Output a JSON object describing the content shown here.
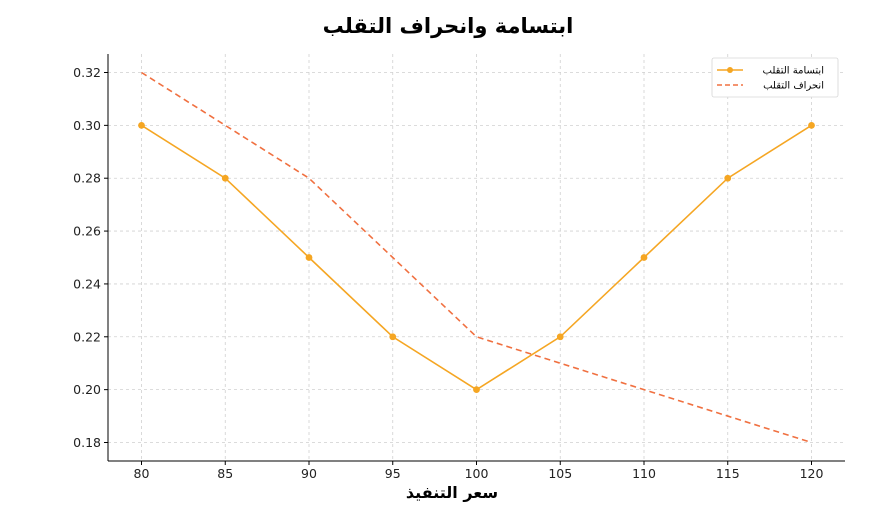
{
  "chart_data": {
    "type": "line",
    "title": "ابتسامة وانحراف التقلب",
    "xlabel": "سعر التنفيذ",
    "ylabel": "",
    "x": [
      80,
      85,
      90,
      95,
      100,
      105,
      110,
      115,
      120
    ],
    "xlim": [
      78,
      122
    ],
    "ylim": [
      0.173,
      0.327
    ],
    "xticks": [
      80,
      85,
      90,
      95,
      100,
      105,
      110,
      115,
      120
    ],
    "yticks": [
      0.18,
      0.2,
      0.22,
      0.24,
      0.26,
      0.28,
      0.3,
      0.32
    ],
    "grid": true,
    "legend_position": "top-right",
    "series": [
      {
        "name": "ابتسامة التقلب",
        "values": [
          0.3,
          0.28,
          0.25,
          0.22,
          0.2,
          0.22,
          0.25,
          0.28,
          0.3
        ],
        "color": "#f5a623",
        "style": "solid",
        "markers": true
      },
      {
        "name": "انحراف التقلب",
        "values": [
          0.32,
          0.3,
          0.28,
          0.25,
          0.22,
          0.21,
          0.2,
          0.19,
          0.18
        ],
        "color": "#f07040",
        "style": "dashed",
        "markers": false
      }
    ]
  }
}
